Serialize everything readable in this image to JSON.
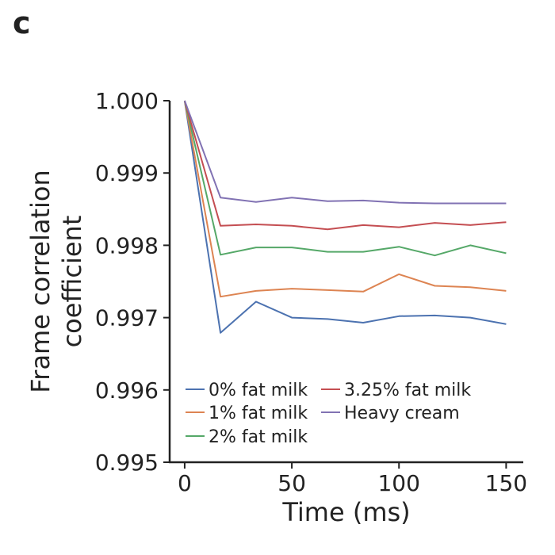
{
  "panel_label": "c",
  "chart_data": {
    "type": "line",
    "title": "",
    "xlabel": "Time (ms)",
    "ylabel_lines": [
      "Frame correlation",
      "coefficient"
    ],
    "xlim": [
      -7,
      158
    ],
    "ylim": [
      0.995,
      1.0
    ],
    "xticks": [
      0,
      50,
      100,
      150
    ],
    "xtick_labels": [
      "0",
      "50",
      "100",
      "150"
    ],
    "yticks": [
      0.995,
      0.996,
      0.997,
      0.998,
      0.999,
      1.0
    ],
    "ytick_labels": [
      "0.995",
      "0.996",
      "0.997",
      "0.998",
      "0.999",
      "1.000"
    ],
    "grid": false,
    "legend_position": "lower-left",
    "x": [
      0,
      16.7,
      33.3,
      50,
      66.7,
      83.3,
      100,
      116.7,
      133.3,
      150
    ],
    "series": [
      {
        "name": "0% fat milk",
        "color": "#4c72b0",
        "values": [
          1.0,
          0.99679,
          0.99722,
          0.997,
          0.99698,
          0.99693,
          0.99702,
          0.99703,
          0.997,
          0.99691
        ]
      },
      {
        "name": "1% fat milk",
        "color": "#dd8452",
        "values": [
          1.0,
          0.99729,
          0.99737,
          0.9974,
          0.99738,
          0.99736,
          0.9976,
          0.99744,
          0.99742,
          0.99737
        ]
      },
      {
        "name": "2% fat milk",
        "color": "#55a868",
        "values": [
          1.0,
          0.99787,
          0.99797,
          0.99797,
          0.99791,
          0.99791,
          0.99798,
          0.99786,
          0.998,
          0.99789
        ]
      },
      {
        "name": "3.25% fat milk",
        "color": "#c44e52",
        "values": [
          1.0,
          0.99827,
          0.99829,
          0.99827,
          0.99822,
          0.99828,
          0.99825,
          0.99831,
          0.99828,
          0.99832
        ]
      },
      {
        "name": "Heavy cream",
        "color": "#8172b3",
        "values": [
          1.0,
          0.99866,
          0.9986,
          0.99866,
          0.99861,
          0.99862,
          0.99859,
          0.99858,
          0.99858,
          0.99858
        ]
      }
    ]
  }
}
